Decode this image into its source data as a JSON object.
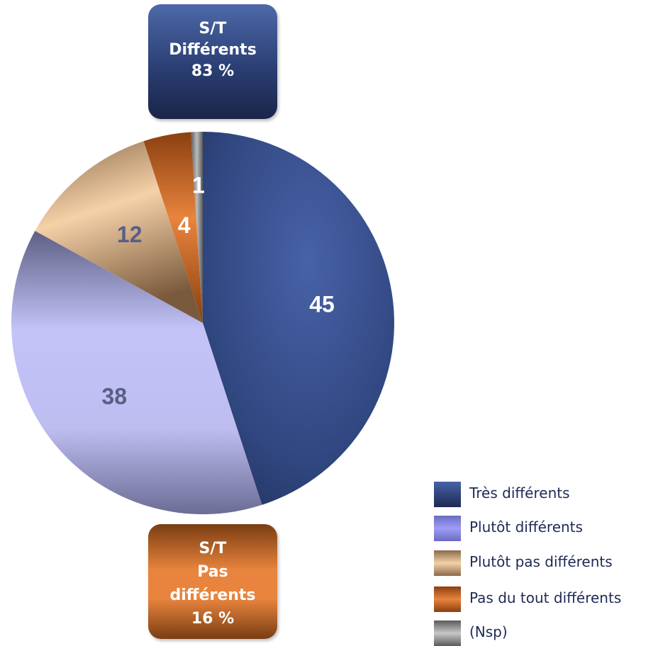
{
  "chart_data": {
    "type": "pie",
    "categories": [
      "Très différents",
      "Plutôt différents",
      "Plutôt pas différents",
      "Pas du tout différents",
      "(Nsp)"
    ],
    "values": [
      45,
      38,
      12,
      4,
      1
    ],
    "labels": [
      "45",
      "38",
      "12",
      "4",
      "1"
    ],
    "colors": [
      "#2f4580",
      "#b9b9f0",
      "#e6c39d",
      "#e07530",
      "#9a9a9a"
    ],
    "legend_position": "bottom-right"
  },
  "callouts": {
    "top": {
      "line1": "S/T",
      "line2": "Différents",
      "line3": "83 %",
      "color": "#2b3f74"
    },
    "bottom": {
      "line1": "S/T",
      "line2": "Pas",
      "line3": "différents",
      "line4": "16 %",
      "color": "#e8843d"
    }
  }
}
